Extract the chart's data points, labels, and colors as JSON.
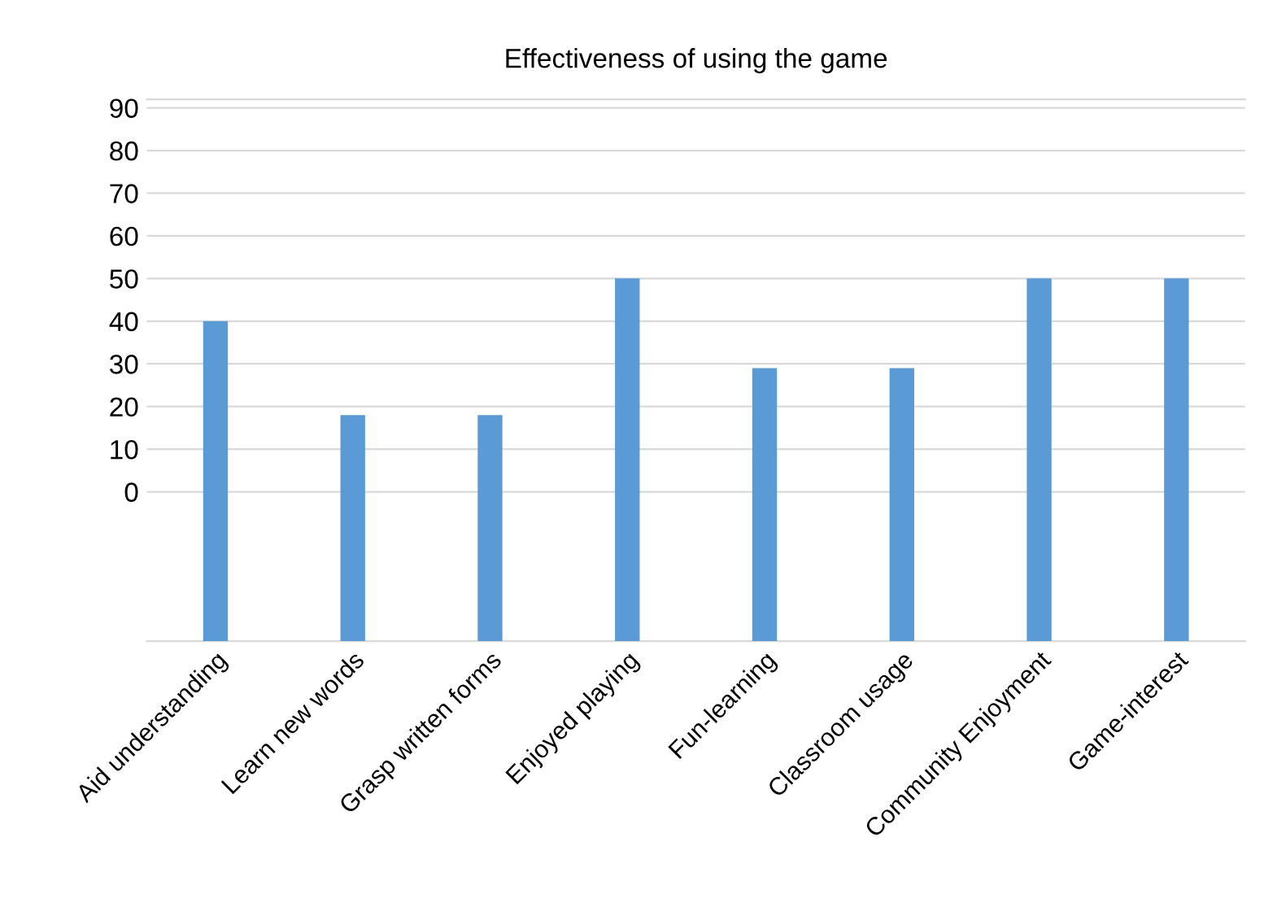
{
  "chart_data": {
    "type": "bar",
    "title": "Effectiveness of using the game",
    "categories": [
      "Aid understanding",
      "Learn new words",
      "Grasp written forms",
      "Enjoyed playing",
      "Fun-learning",
      "Classroom usage",
      "Community Enjoyment",
      "Game-interest"
    ],
    "base": [
      -35,
      -35,
      -35,
      -35,
      -35,
      -35,
      -35,
      -35
    ],
    "values": [
      75,
      53,
      53,
      85,
      64,
      64,
      85,
      85
    ],
    "color": "#5b9bd5",
    "ylim": [
      -35,
      92
    ],
    "yticks": [
      0,
      10,
      20,
      30,
      40,
      50,
      60,
      70,
      80,
      90
    ],
    "grid": "y"
  }
}
